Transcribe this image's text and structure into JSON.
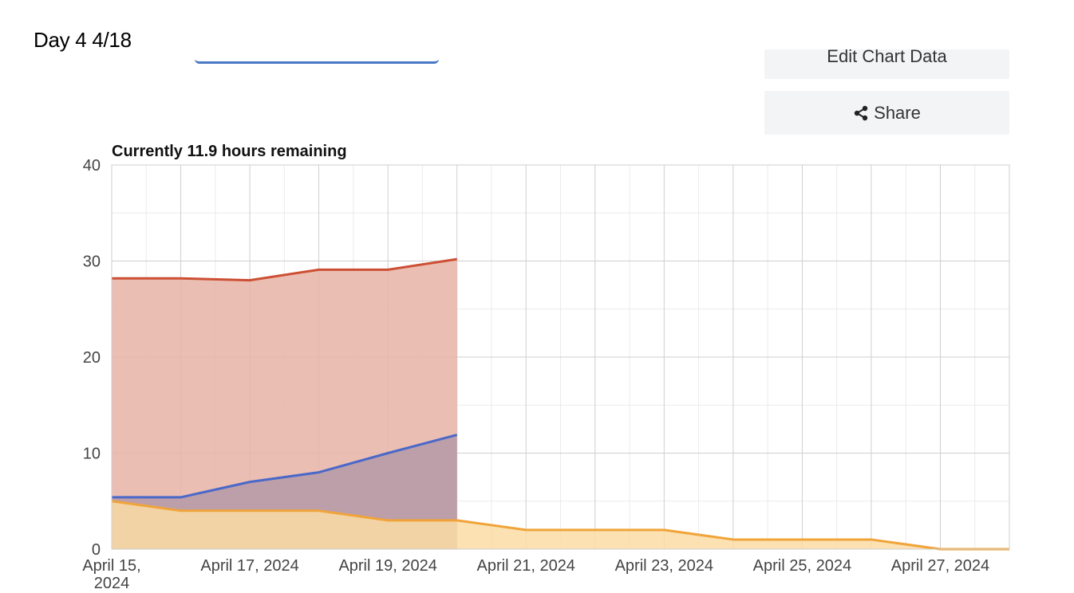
{
  "header": {
    "day_label": "Day 4 4/18"
  },
  "toolbar": {
    "edit_label": "Edit Chart Data",
    "share_label": "Share",
    "share_icon": "share-icon",
    "edit_icon": "pencil-icon"
  },
  "chart_data": {
    "type": "area",
    "title": "Currently 11.9 hours remaining",
    "xlabel": "",
    "ylabel": "",
    "ylim": [
      0,
      40
    ],
    "yticks": [
      0,
      10,
      20,
      30,
      40
    ],
    "x": [
      "2024-04-15",
      "2024-04-16",
      "2024-04-17",
      "2024-04-18",
      "2024-04-19",
      "2024-04-20",
      "2024-04-21",
      "2024-04-22",
      "2024-04-23",
      "2024-04-24",
      "2024-04-25",
      "2024-04-26",
      "2024-04-27",
      "2024-04-28"
    ],
    "xtick_labels": [
      {
        "date": "2024-04-15",
        "lines": [
          "April 15,",
          "2024"
        ]
      },
      {
        "date": "2024-04-17",
        "lines": [
          "April 17, 2024"
        ]
      },
      {
        "date": "2024-04-19",
        "lines": [
          "April 19, 2024"
        ]
      },
      {
        "date": "2024-04-21",
        "lines": [
          "April 21, 2024"
        ]
      },
      {
        "date": "2024-04-23",
        "lines": [
          "April 23, 2024"
        ]
      },
      {
        "date": "2024-04-25",
        "lines": [
          "April 25, 2024"
        ]
      },
      {
        "date": "2024-04-27",
        "lines": [
          "April 27, 2024"
        ]
      }
    ],
    "grid": true,
    "legend": "none",
    "series": [
      {
        "color": "#cc4f33",
        "fill": "#e8b3a6",
        "points": [
          [
            "2024-04-15",
            28.2
          ],
          [
            "2024-04-16",
            28.2
          ],
          [
            "2024-04-17",
            28.0
          ],
          [
            "2024-04-18",
            29.1
          ],
          [
            "2024-04-19",
            29.1
          ],
          [
            "2024-04-20",
            30.2
          ]
        ]
      },
      {
        "color": "#4a68c8",
        "fill": "#b59aa8",
        "points": [
          [
            "2024-04-15",
            5.4
          ],
          [
            "2024-04-16",
            5.4
          ],
          [
            "2024-04-17",
            7.0
          ],
          [
            "2024-04-18",
            8.0
          ],
          [
            "2024-04-19",
            10.0
          ],
          [
            "2024-04-20",
            11.9
          ]
        ]
      },
      {
        "color": "#f0a43a",
        "fill": "#fbdca5",
        "points": [
          [
            "2024-04-15",
            5.0
          ],
          [
            "2024-04-16",
            4.0
          ],
          [
            "2024-04-17",
            4.0
          ],
          [
            "2024-04-18",
            4.0
          ],
          [
            "2024-04-19",
            3.0
          ],
          [
            "2024-04-20",
            3.0
          ],
          [
            "2024-04-21",
            2.0
          ],
          [
            "2024-04-22",
            2.0
          ],
          [
            "2024-04-23",
            2.0
          ],
          [
            "2024-04-24",
            1.0
          ],
          [
            "2024-04-25",
            1.0
          ],
          [
            "2024-04-26",
            1.0
          ],
          [
            "2024-04-27",
            0.0
          ],
          [
            "2024-04-28",
            0.0
          ]
        ]
      }
    ]
  }
}
